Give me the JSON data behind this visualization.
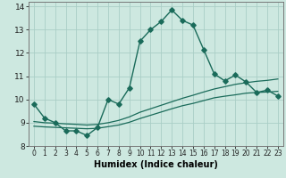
{
  "xlabel": "Humidex (Indice chaleur)",
  "xlim": [
    -0.5,
    23.5
  ],
  "ylim": [
    8,
    14.2
  ],
  "yticks": [
    8,
    9,
    10,
    11,
    12,
    13,
    14
  ],
  "xticks": [
    0,
    1,
    2,
    3,
    4,
    5,
    6,
    7,
    8,
    9,
    10,
    11,
    12,
    13,
    14,
    15,
    16,
    17,
    18,
    19,
    20,
    21,
    22,
    23
  ],
  "bg_color": "#cde8e0",
  "line_color": "#1a6b5a",
  "grid_color": "#aacec6",
  "main_line_x": [
    0,
    1,
    2,
    3,
    4,
    5,
    6,
    7,
    8,
    9,
    10,
    11,
    12,
    13,
    14,
    15,
    16,
    17,
    18,
    19,
    20,
    21,
    22,
    23
  ],
  "main_line_y": [
    9.8,
    9.2,
    9.0,
    8.65,
    8.65,
    8.45,
    8.8,
    10.0,
    9.8,
    10.5,
    12.5,
    13.0,
    13.35,
    13.85,
    13.4,
    13.2,
    12.15,
    11.1,
    10.8,
    11.05,
    10.75,
    10.3,
    10.4,
    10.15
  ],
  "line2_x": [
    0,
    1,
    2,
    3,
    4,
    5,
    6,
    7,
    8,
    9,
    10,
    11,
    12,
    13,
    14,
    15,
    16,
    17,
    18,
    19,
    20,
    21,
    22,
    23
  ],
  "line2_y": [
    9.05,
    9.0,
    8.98,
    8.95,
    8.93,
    8.9,
    8.93,
    9.0,
    9.1,
    9.25,
    9.45,
    9.6,
    9.75,
    9.9,
    10.05,
    10.18,
    10.32,
    10.45,
    10.55,
    10.65,
    10.72,
    10.78,
    10.82,
    10.88
  ],
  "line3_x": [
    0,
    1,
    2,
    3,
    4,
    5,
    6,
    7,
    8,
    9,
    10,
    11,
    12,
    13,
    14,
    15,
    16,
    17,
    18,
    19,
    20,
    21,
    22,
    23
  ],
  "line3_y": [
    8.85,
    8.82,
    8.8,
    8.78,
    8.76,
    8.74,
    8.76,
    8.83,
    8.9,
    9.02,
    9.18,
    9.32,
    9.46,
    9.6,
    9.73,
    9.83,
    9.95,
    10.07,
    10.14,
    10.2,
    10.27,
    10.3,
    10.32,
    10.35
  ]
}
